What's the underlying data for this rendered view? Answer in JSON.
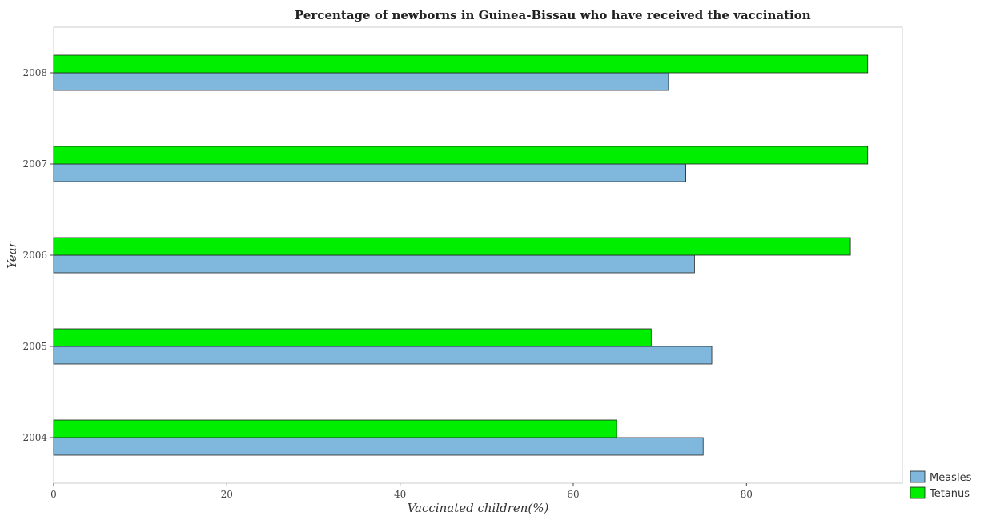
{
  "chart_data": {
    "type": "bar",
    "orientation": "horizontal",
    "title": "Percentage of newborns in Guinea-Bissau who have received the vaccination",
    "xlabel": "Vaccinated children(%)",
    "ylabel": "Year",
    "categories": [
      "2004",
      "2005",
      "2006",
      "2007",
      "2008"
    ],
    "series": [
      {
        "name": "Measles",
        "values": [
          75,
          76,
          74,
          73,
          71
        ],
        "color": "#7fb8dc"
      },
      {
        "name": "Tetanus",
        "values": [
          65,
          69,
          92,
          94,
          94
        ],
        "color": "#00ee00"
      }
    ],
    "xlim": [
      0,
      98
    ],
    "xticks": [
      0,
      20,
      40,
      60,
      80
    ],
    "grid": false,
    "legend_position": "bottom-right"
  }
}
